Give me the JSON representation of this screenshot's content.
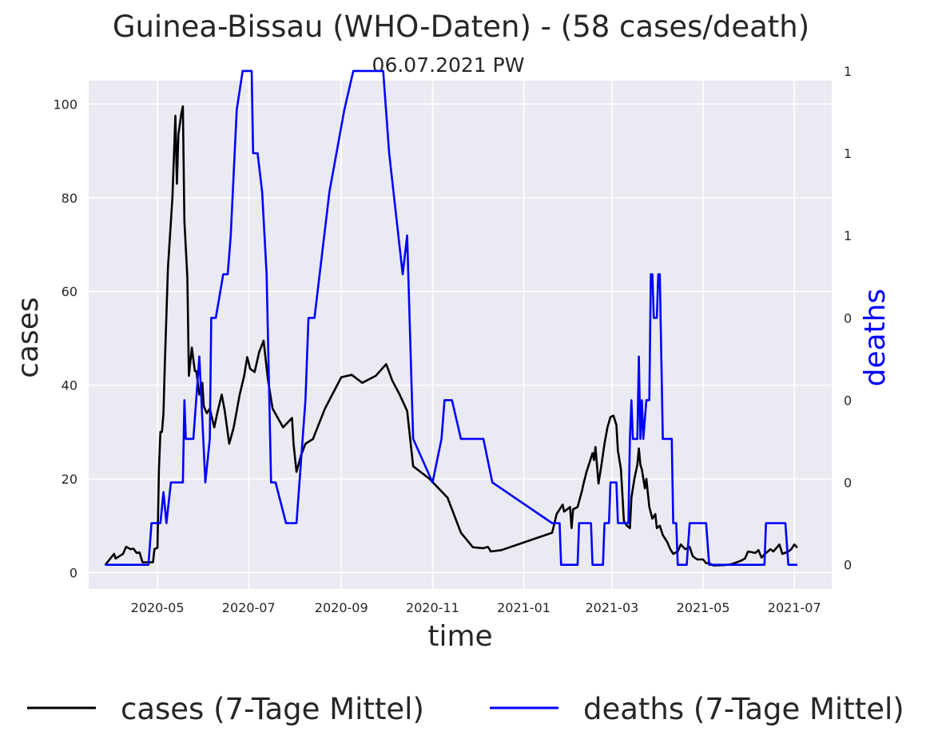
{
  "chart_data": {
    "type": "line",
    "title": "Guinea-Bissau (WHO-Daten) - (58 cases/death)",
    "subtitle": "06.07.2021 PW",
    "xlabel": "time",
    "ylabel": "cases",
    "y2label": "deaths",
    "x_ticks": [
      "2020-05-01",
      "2020-07-01",
      "2020-09-01",
      "2020-11-01",
      "2021-01-01",
      "2021-03-01",
      "2021-05-01",
      "2021-07-01"
    ],
    "x_tick_labels": [
      "2020-05",
      "2020-07",
      "2020-09",
      "2020-11",
      "2021-01",
      "2021-03",
      "2021-05",
      "2021-07"
    ],
    "xlim": [
      "2020-03-16",
      "2021-07-26"
    ],
    "ylim": [
      -3.5,
      105
    ],
    "y_ticks": [
      0,
      20,
      40,
      60,
      80,
      100
    ],
    "y2lim": [
      -0.05,
      1.0
    ],
    "y2_ticks": [
      0,
      0.17,
      0.34,
      0.51,
      0.68,
      0.85,
      1.02,
      1.19
    ],
    "y2_tick_labels": [
      "0",
      "0",
      "0",
      "0",
      "1",
      "1",
      "1",
      "1"
    ],
    "grid": true,
    "legend_position": "bottom",
    "series": [
      {
        "name": "cases (7-Tage Mittel)",
        "color": "#000000",
        "axis": "left",
        "points": [
          [
            "2020-03-27",
            1.6
          ],
          [
            "2020-03-30",
            2.8
          ],
          [
            "2020-04-02",
            4.0
          ],
          [
            "2020-04-03",
            3.0
          ],
          [
            "2020-04-06",
            3.6
          ],
          [
            "2020-04-08",
            4.0
          ],
          [
            "2020-04-10",
            5.5
          ],
          [
            "2020-04-13",
            5.0
          ],
          [
            "2020-04-15",
            5.1
          ],
          [
            "2020-04-17",
            4.2
          ],
          [
            "2020-04-19",
            4.3
          ],
          [
            "2020-04-21",
            2.2
          ],
          [
            "2020-04-26",
            2.2
          ],
          [
            "2020-04-28",
            2.2
          ],
          [
            "2020-04-29",
            5.0
          ],
          [
            "2020-05-01",
            5.3
          ],
          [
            "2020-05-02",
            22.0
          ],
          [
            "2020-05-03",
            30.0
          ],
          [
            "2020-05-04",
            30.0
          ],
          [
            "2020-05-05",
            34.0
          ],
          [
            "2020-05-06",
            45.0
          ],
          [
            "2020-05-08",
            65.0
          ],
          [
            "2020-05-11",
            80.0
          ],
          [
            "2020-05-13",
            97.5
          ],
          [
            "2020-05-14",
            83.0
          ],
          [
            "2020-05-15",
            93.5
          ],
          [
            "2020-05-17",
            98.0
          ],
          [
            "2020-05-18",
            99.5
          ],
          [
            "2020-05-19",
            75.0
          ],
          [
            "2020-05-21",
            63.0
          ],
          [
            "2020-05-22",
            42.0
          ],
          [
            "2020-05-24",
            48.0
          ],
          [
            "2020-05-26",
            43.0
          ],
          [
            "2020-05-27",
            43.0
          ],
          [
            "2020-05-29",
            38.0
          ],
          [
            "2020-05-31",
            40.5
          ],
          [
            "2020-06-01",
            35.5
          ],
          [
            "2020-06-03",
            34.0
          ],
          [
            "2020-06-05",
            35.0
          ],
          [
            "2020-06-08",
            31.0
          ],
          [
            "2020-06-10",
            34.0
          ],
          [
            "2020-06-13",
            38.0
          ],
          [
            "2020-06-15",
            34.5
          ],
          [
            "2020-06-18",
            27.5
          ],
          [
            "2020-06-21",
            31.0
          ],
          [
            "2020-06-25",
            38.0
          ],
          [
            "2020-06-28",
            42.0
          ],
          [
            "2020-06-30",
            46.0
          ],
          [
            "2020-07-02",
            43.5
          ],
          [
            "2020-07-05",
            42.8
          ],
          [
            "2020-07-08",
            47.0
          ],
          [
            "2020-07-11",
            49.5
          ],
          [
            "2020-07-14",
            41.0
          ],
          [
            "2020-07-17",
            35.0
          ],
          [
            "2020-07-24",
            31.0
          ],
          [
            "2020-07-30",
            33.0
          ],
          [
            "2020-07-31",
            27.5
          ],
          [
            "2020-08-02",
            21.5
          ],
          [
            "2020-08-05",
            25.0
          ],
          [
            "2020-08-08",
            27.5
          ],
          [
            "2020-08-13",
            28.5
          ],
          [
            "2020-08-21",
            35.0
          ],
          [
            "2020-09-01",
            41.7
          ],
          [
            "2020-09-08",
            42.2
          ],
          [
            "2020-09-15",
            40.5
          ],
          [
            "2020-09-24",
            42.0
          ],
          [
            "2020-10-01",
            44.5
          ],
          [
            "2020-10-05",
            41.0
          ],
          [
            "2020-10-10",
            38.0
          ],
          [
            "2020-10-15",
            34.5
          ],
          [
            "2020-10-19",
            22.7
          ],
          [
            "2020-10-30",
            20.0
          ],
          [
            "2020-11-05",
            18.0
          ],
          [
            "2020-11-11",
            16.0
          ],
          [
            "2020-11-20",
            8.5
          ],
          [
            "2020-11-28",
            5.4
          ],
          [
            "2020-12-05",
            5.2
          ],
          [
            "2020-12-08",
            5.5
          ],
          [
            "2020-12-10",
            4.5
          ],
          [
            "2020-12-17",
            4.8
          ],
          [
            "2021-01-20",
            8.5
          ],
          [
            "2021-01-23",
            12.5
          ],
          [
            "2021-01-27",
            14.5
          ],
          [
            "2021-01-28",
            13.0
          ],
          [
            "2021-02-01",
            14.0
          ],
          [
            "2021-02-02",
            9.5
          ],
          [
            "2021-02-03",
            13.5
          ],
          [
            "2021-02-06",
            14.0
          ],
          [
            "2021-02-09",
            17.5
          ],
          [
            "2021-02-10",
            19.0
          ],
          [
            "2021-02-12",
            21.5
          ],
          [
            "2021-02-14",
            23.5
          ],
          [
            "2021-02-16",
            25.5
          ],
          [
            "2021-02-17",
            24.0
          ],
          [
            "2021-02-18",
            26.8
          ],
          [
            "2021-02-20",
            19.0
          ],
          [
            "2021-02-22",
            23.0
          ],
          [
            "2021-02-24",
            27.5
          ],
          [
            "2021-02-26",
            31.0
          ],
          [
            "2021-02-28",
            33.2
          ],
          [
            "2021-03-02",
            33.5
          ],
          [
            "2021-03-04",
            31.5
          ],
          [
            "2021-03-05",
            26.0
          ],
          [
            "2021-03-07",
            22.0
          ],
          [
            "2021-03-09",
            11.0
          ],
          [
            "2021-03-11",
            10.0
          ],
          [
            "2021-03-13",
            9.5
          ],
          [
            "2021-03-14",
            16.0
          ],
          [
            "2021-03-16",
            20.0
          ],
          [
            "2021-03-18",
            23.0
          ],
          [
            "2021-03-19",
            26.5
          ],
          [
            "2021-03-20",
            23.0
          ],
          [
            "2021-03-21",
            22.0
          ],
          [
            "2021-03-23",
            18.0
          ],
          [
            "2021-03-24",
            20.0
          ],
          [
            "2021-03-26",
            14.0
          ],
          [
            "2021-03-28",
            11.5
          ],
          [
            "2021-03-30",
            12.5
          ],
          [
            "2021-03-31",
            9.5
          ],
          [
            "2021-04-02",
            10.0
          ],
          [
            "2021-04-04",
            8.0
          ],
          [
            "2021-04-07",
            6.5
          ],
          [
            "2021-04-09",
            5.0
          ],
          [
            "2021-04-11",
            4.0
          ],
          [
            "2021-04-14",
            4.5
          ],
          [
            "2021-04-16",
            6.0
          ],
          [
            "2021-04-19",
            5.0
          ],
          [
            "2021-04-22",
            5.5
          ],
          [
            "2021-04-24",
            3.5
          ],
          [
            "2021-04-27",
            2.8
          ],
          [
            "2021-05-01",
            2.8
          ],
          [
            "2021-05-03",
            2.0
          ],
          [
            "2021-05-05",
            2.0
          ],
          [
            "2021-05-08",
            1.5
          ],
          [
            "2021-05-15",
            1.6
          ],
          [
            "2021-05-20",
            1.8
          ],
          [
            "2021-05-26",
            2.5
          ],
          [
            "2021-05-29",
            3.0
          ],
          [
            "2021-05-31",
            4.5
          ],
          [
            "2021-06-05",
            4.2
          ],
          [
            "2021-06-07",
            4.8
          ],
          [
            "2021-06-09",
            3.2
          ],
          [
            "2021-06-11",
            3.9
          ],
          [
            "2021-06-15",
            5.0
          ],
          [
            "2021-06-17",
            4.5
          ],
          [
            "2021-06-21",
            6.0
          ],
          [
            "2021-06-23",
            4.0
          ],
          [
            "2021-06-27",
            4.5
          ],
          [
            "2021-06-29",
            5.0
          ],
          [
            "2021-07-01",
            6.0
          ],
          [
            "2021-07-03",
            5.3
          ]
        ]
      },
      {
        "name": "deaths (7-Tage Mittel)",
        "color": "#0000ff",
        "axis": "right",
        "points": [
          [
            "2020-03-27",
            0.0
          ],
          [
            "2020-04-25",
            0.0
          ],
          [
            "2020-04-27",
            0.086
          ],
          [
            "2020-05-03",
            0.086
          ],
          [
            "2020-05-05",
            0.15
          ],
          [
            "2020-05-07",
            0.086
          ],
          [
            "2020-05-10",
            0.17
          ],
          [
            "2020-05-16",
            0.17
          ],
          [
            "2020-05-18",
            0.17
          ],
          [
            "2020-05-19",
            0.34
          ],
          [
            "2020-05-20",
            0.26
          ],
          [
            "2020-05-25",
            0.26
          ],
          [
            "2020-05-29",
            0.43
          ],
          [
            "2020-06-02",
            0.17
          ],
          [
            "2020-06-05",
            0.26
          ],
          [
            "2020-06-06",
            0.51
          ],
          [
            "2020-06-09",
            0.51
          ],
          [
            "2020-06-14",
            0.6
          ],
          [
            "2020-06-17",
            0.6
          ],
          [
            "2020-06-19",
            0.68
          ],
          [
            "2020-06-23",
            0.94
          ],
          [
            "2020-06-27",
            1.02
          ],
          [
            "2020-07-03",
            1.02
          ],
          [
            "2020-07-04",
            0.85
          ],
          [
            "2020-07-07",
            0.85
          ],
          [
            "2020-07-10",
            0.77
          ],
          [
            "2020-07-13",
            0.6
          ],
          [
            "2020-07-16",
            0.17
          ],
          [
            "2020-07-19",
            0.17
          ],
          [
            "2020-07-26",
            0.086
          ],
          [
            "2020-08-02",
            0.086
          ],
          [
            "2020-08-08",
            0.34
          ],
          [
            "2020-08-10",
            0.51
          ],
          [
            "2020-08-14",
            0.51
          ],
          [
            "2020-08-24",
            0.77
          ],
          [
            "2020-09-03",
            0.94
          ],
          [
            "2020-09-09",
            1.02
          ],
          [
            "2020-09-29",
            1.02
          ],
          [
            "2020-10-03",
            0.85
          ],
          [
            "2020-10-12",
            0.6
          ],
          [
            "2020-10-15",
            0.68
          ],
          [
            "2020-10-19",
            0.26
          ],
          [
            "2020-11-01",
            0.17
          ],
          [
            "2020-11-07",
            0.26
          ],
          [
            "2020-11-09",
            0.34
          ],
          [
            "2020-11-14",
            0.34
          ],
          [
            "2020-11-20",
            0.26
          ],
          [
            "2020-12-05",
            0.26
          ],
          [
            "2020-12-11",
            0.17
          ],
          [
            "2021-01-20",
            0.086
          ],
          [
            "2021-01-25",
            0.086
          ],
          [
            "2021-01-26",
            0.0
          ],
          [
            "2021-02-06",
            0.0
          ],
          [
            "2021-02-07",
            0.086
          ],
          [
            "2021-02-15",
            0.086
          ],
          [
            "2021-02-16",
            0.0
          ],
          [
            "2021-02-23",
            0.0
          ],
          [
            "2021-02-24",
            0.086
          ],
          [
            "2021-02-27",
            0.086
          ],
          [
            "2021-02-28",
            0.17
          ],
          [
            "2021-03-04",
            0.17
          ],
          [
            "2021-03-05",
            0.086
          ],
          [
            "2021-03-12",
            0.086
          ],
          [
            "2021-03-13",
            0.26
          ],
          [
            "2021-03-14",
            0.34
          ],
          [
            "2021-03-15",
            0.26
          ],
          [
            "2021-03-18",
            0.26
          ],
          [
            "2021-03-19",
            0.43
          ],
          [
            "2021-03-20",
            0.26
          ],
          [
            "2021-03-21",
            0.34
          ],
          [
            "2021-03-22",
            0.26
          ],
          [
            "2021-03-24",
            0.34
          ],
          [
            "2021-03-26",
            0.34
          ],
          [
            "2021-03-27",
            0.6
          ],
          [
            "2021-03-28",
            0.6
          ],
          [
            "2021-03-29",
            0.51
          ],
          [
            "2021-03-31",
            0.51
          ],
          [
            "2021-04-01",
            0.6
          ],
          [
            "2021-04-02",
            0.6
          ],
          [
            "2021-04-04",
            0.26
          ],
          [
            "2021-04-10",
            0.26
          ],
          [
            "2021-04-11",
            0.086
          ],
          [
            "2021-04-13",
            0.086
          ],
          [
            "2021-04-14",
            0.0
          ],
          [
            "2021-04-20",
            0.0
          ],
          [
            "2021-04-22",
            0.086
          ],
          [
            "2021-05-03",
            0.086
          ],
          [
            "2021-05-05",
            0.0
          ],
          [
            "2021-06-11",
            0.0
          ],
          [
            "2021-06-12",
            0.086
          ],
          [
            "2021-06-25",
            0.086
          ],
          [
            "2021-06-27",
            0.0
          ],
          [
            "2021-07-03",
            0.0
          ]
        ]
      }
    ]
  }
}
